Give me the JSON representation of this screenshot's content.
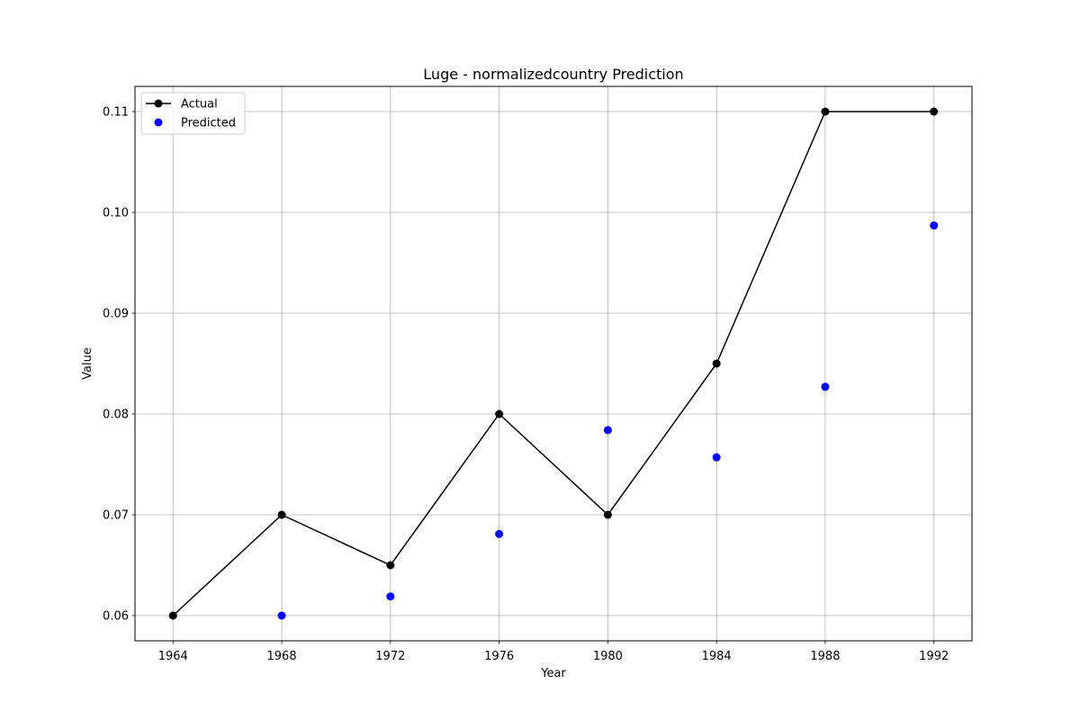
{
  "chart_data": {
    "type": "line",
    "title": "Luge - normalizedcountry Prediction",
    "xlabel": "Year",
    "ylabel": "Value",
    "xlim": [
      1962.6,
      1993.4
    ],
    "ylim": [
      0.0575,
      0.1125
    ],
    "x_ticks": [
      "1964",
      "1968",
      "1972",
      "1976",
      "1980",
      "1984",
      "1988",
      "1992"
    ],
    "y_ticks": [
      "0.06",
      "0.07",
      "0.08",
      "0.09",
      "0.10",
      "0.11"
    ],
    "grid": true,
    "legend_position": "top-left",
    "series": [
      {
        "name": "Actual",
        "kind": "line-with-markers",
        "color": "#000000",
        "x": [
          1964,
          1968,
          1972,
          1976,
          1980,
          1984,
          1988,
          1992
        ],
        "y": [
          0.06,
          0.07,
          0.065,
          0.08,
          0.07,
          0.085,
          0.11,
          0.11
        ]
      },
      {
        "name": "Predicted",
        "kind": "scatter",
        "color": "#0000ff",
        "x": [
          1968,
          1972,
          1976,
          1980,
          1984,
          1988,
          1992
        ],
        "y": [
          0.06,
          0.0619,
          0.0681,
          0.0784,
          0.0757,
          0.0827,
          0.0987
        ]
      }
    ]
  }
}
